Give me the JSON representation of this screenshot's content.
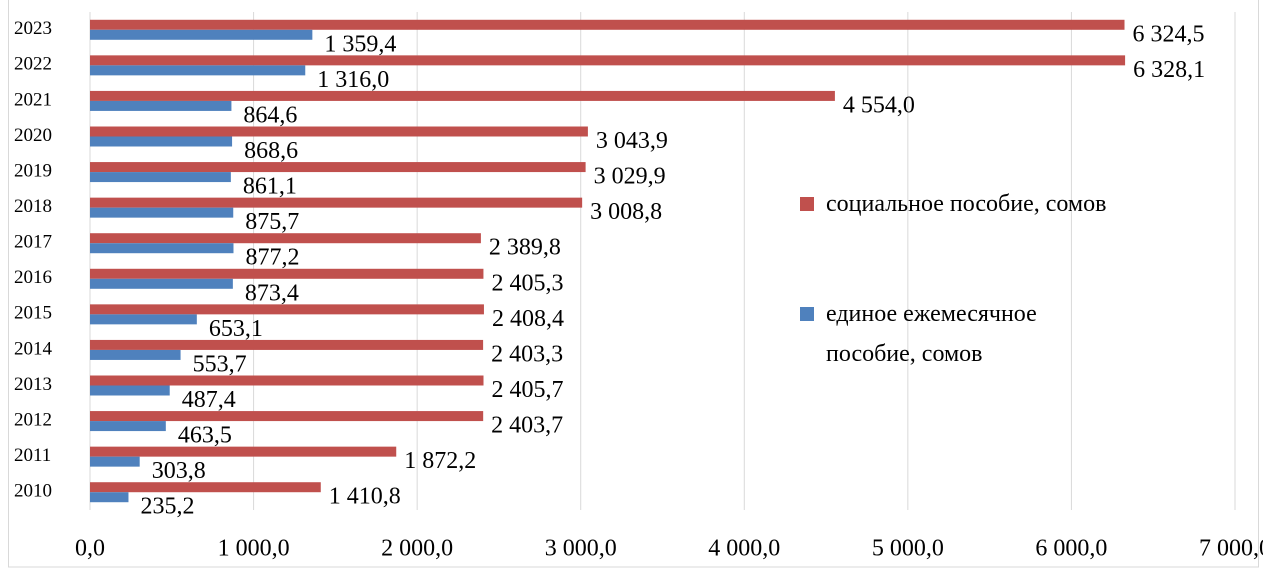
{
  "chart_data": {
    "type": "barh",
    "categories": [
      "2010",
      "2011",
      "2012",
      "2013",
      "2014",
      "2015",
      "2016",
      "2017",
      "2018",
      "2019",
      "2020",
      "2021",
      "2022",
      "2023"
    ],
    "series": [
      {
        "name": "социальное пособие, сомов",
        "color": "#c0504d",
        "values": [
          1410.8,
          1872.2,
          2403.7,
          2405.7,
          2403.3,
          2408.4,
          2405.3,
          2389.8,
          3008.8,
          3029.9,
          3043.9,
          4554.0,
          6328.1,
          6324.5
        ],
        "value_labels": [
          "1 410,8",
          "1 872,2",
          "2 403,7",
          "2 405,7",
          "2 403,3",
          "2 408,4",
          "2 405,3",
          "2 389,8",
          "3 008,8",
          "3 029,9",
          "3 043,9",
          "4 554,0",
          "6 328,1",
          "6 324,5"
        ]
      },
      {
        "name": "единое ежемесячное пособие, сомов",
        "color": "#4f81bd",
        "values": [
          235.2,
          303.8,
          463.5,
          487.4,
          553.7,
          653.1,
          873.4,
          877.2,
          875.7,
          861.1,
          868.6,
          864.6,
          1316.0,
          1359.4
        ],
        "value_labels": [
          "235,2",
          "303,8",
          "463,5",
          "487,4",
          "553,7",
          "653,1",
          "873,4",
          "877,2",
          "875,7",
          "861,1",
          "868,6",
          "864,6",
          "1 316,0",
          "1 359,4"
        ]
      }
    ],
    "xlim": [
      0,
      7000
    ],
    "xticks": [
      {
        "value": 0,
        "label": "0,0"
      },
      {
        "value": 1000,
        "label": "1 000,0"
      },
      {
        "value": 2000,
        "label": "2 000,0"
      },
      {
        "value": 3000,
        "label": "3 000,0"
      },
      {
        "value": 4000,
        "label": "4 000,0"
      },
      {
        "value": 5000,
        "label": "5 000,0"
      },
      {
        "value": 6000,
        "label": "6 000,0"
      },
      {
        "value": 7000,
        "label": "7 000,0"
      }
    ],
    "grid": true
  }
}
